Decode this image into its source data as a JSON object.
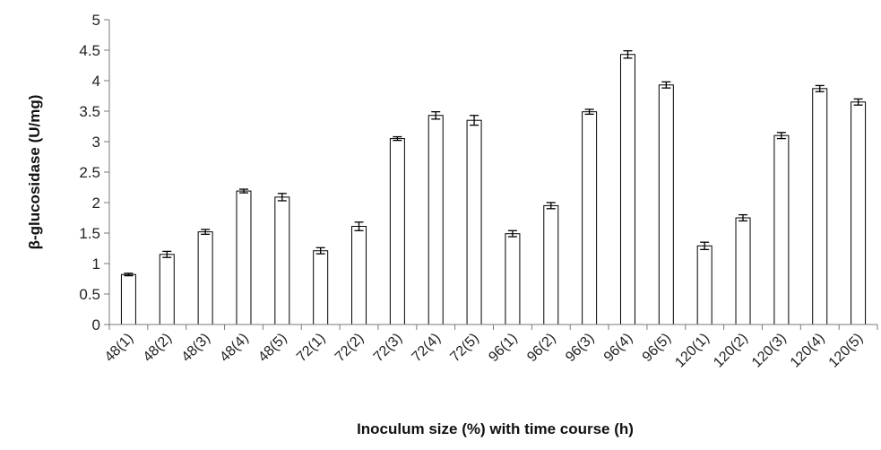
{
  "chart_data": {
    "type": "bar",
    "title": "",
    "xlabel": "Inoculum size (%) with time course (h)",
    "ylabel": "β-glucosidase (U/mg)",
    "ylim": [
      0,
      5
    ],
    "yticks": [
      "0",
      "0.5",
      "1",
      "1.5",
      "2",
      "2.5",
      "3",
      "3.5",
      "4",
      "4.5",
      "5"
    ],
    "categories": [
      "48(1)",
      "48(2)",
      "48(3)",
      "48(4)",
      "48(5)",
      "72(1)",
      "72(2)",
      "72(3)",
      "72(4)",
      "72(5)",
      "96(1)",
      "96(2)",
      "96(3)",
      "96(4)",
      "96(5)",
      "120(1)",
      "120(2)",
      "120(3)",
      "120(4)",
      "120(5)"
    ],
    "values": [
      0.82,
      1.15,
      1.52,
      2.19,
      2.09,
      1.21,
      1.61,
      3.05,
      3.43,
      3.35,
      1.49,
      1.95,
      3.49,
      4.43,
      3.93,
      1.29,
      1.75,
      3.1,
      3.87,
      3.65
    ],
    "errors": [
      0.02,
      0.05,
      0.04,
      0.03,
      0.06,
      0.05,
      0.07,
      0.03,
      0.06,
      0.08,
      0.05,
      0.05,
      0.04,
      0.06,
      0.05,
      0.06,
      0.05,
      0.05,
      0.05,
      0.05
    ],
    "grid": false,
    "legend": "none",
    "colors": {
      "bar_fill": "#ffffff",
      "bar_stroke": "#000000",
      "axis": "#7a7a7a",
      "text": "#222222"
    }
  }
}
